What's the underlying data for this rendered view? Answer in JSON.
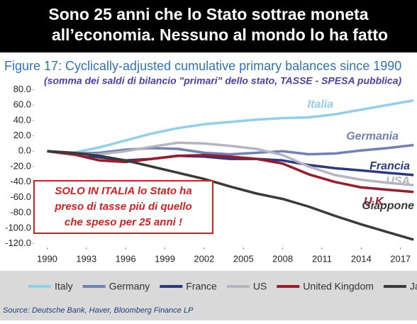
{
  "chart_data": {
    "type": "line",
    "title_lines": [
      "Sono 25 anni che lo Stato sottrae moneta",
      "all’economia. Nessuno al mondo lo ha fatto"
    ],
    "figure_title": "Figure 17: Cyclically-adjusted cumulative primary balances since 1990",
    "subtitle": "(somma dei saldi di bilancio \"primari\" dello stato, TASSE - SPESA pubblica)",
    "note_lines": [
      "SOLO IN ITALIA lo Stato ha",
      "preso di tasse più di quello",
      "che speso per 25 anni !"
    ],
    "source": "Source: Deutsche Bank, Haver, Bloomberg Finance LP",
    "x": [
      1990,
      1992,
      1994,
      1996,
      1998,
      2000,
      2002,
      2004,
      2006,
      2008,
      2010,
      2012,
      2014,
      2016,
      2018
    ],
    "series": [
      {
        "name": "Italy",
        "label": "Italia",
        "color": "#8fd0ee",
        "values": [
          0,
          -2,
          5,
          14,
          23,
          30,
          35,
          38,
          41,
          43,
          44,
          48,
          54,
          60,
          66
        ]
      },
      {
        "name": "Germany",
        "label": "Germania",
        "color": "#7080b8",
        "values": [
          0,
          -3,
          -2,
          2,
          4,
          3,
          -2,
          -4,
          -2,
          0,
          -4,
          -3,
          1,
          4,
          8
        ]
      },
      {
        "name": "France",
        "label": "Francia",
        "color": "#2b3a80",
        "values": [
          0,
          -3,
          -8,
          -12,
          -10,
          -6,
          -7,
          -10,
          -10,
          -12,
          -18,
          -22,
          -25,
          -28,
          -31
        ]
      },
      {
        "name": "US",
        "label": "USA",
        "color": "#b5b5bf",
        "values": [
          0,
          -5,
          -4,
          0,
          6,
          11,
          10,
          7,
          3,
          -5,
          -20,
          -31,
          -37,
          -41,
          -44
        ]
      },
      {
        "name": "United Kingdom",
        "label": "U.K.",
        "color": "#9b1b2a",
        "values": [
          0,
          -4,
          -12,
          -14,
          -10,
          -6,
          -5,
          -7,
          -10,
          -16,
          -30,
          -40,
          -47,
          -50,
          -53
        ]
      },
      {
        "name": "Japan",
        "label": "Giappone",
        "color": "#3a3a3a",
        "values": [
          0,
          -2,
          -6,
          -12,
          -20,
          -28,
          -36,
          -46,
          -55,
          -62,
          -72,
          -84,
          -95,
          -105,
          -115
        ]
      }
    ],
    "xlim": [
      1989,
      2018.1
    ],
    "xticks": [
      1990,
      1993,
      1996,
      1999,
      2002,
      2005,
      2008,
      2011,
      2014,
      2017
    ],
    "ylim": [
      -125,
      85
    ],
    "yticks": [
      {
        "value": 80,
        "label": "80.0"
      },
      {
        "value": 60,
        "label": "60.0"
      },
      {
        "value": 40,
        "label": "40.0"
      },
      {
        "value": 20,
        "label": "20.0"
      },
      {
        "value": 0,
        "label": "0.0"
      },
      {
        "value": -20,
        "label": "-20.0"
      },
      {
        "value": -40,
        "label": "-40.0"
      },
      {
        "value": -60,
        "label": "-60.0"
      },
      {
        "value": -80,
        "label": "-80.0"
      },
      {
        "value": -100,
        "label": "-100.0"
      },
      {
        "value": -120,
        "label": "-120.0"
      }
    ],
    "grid": false
  }
}
